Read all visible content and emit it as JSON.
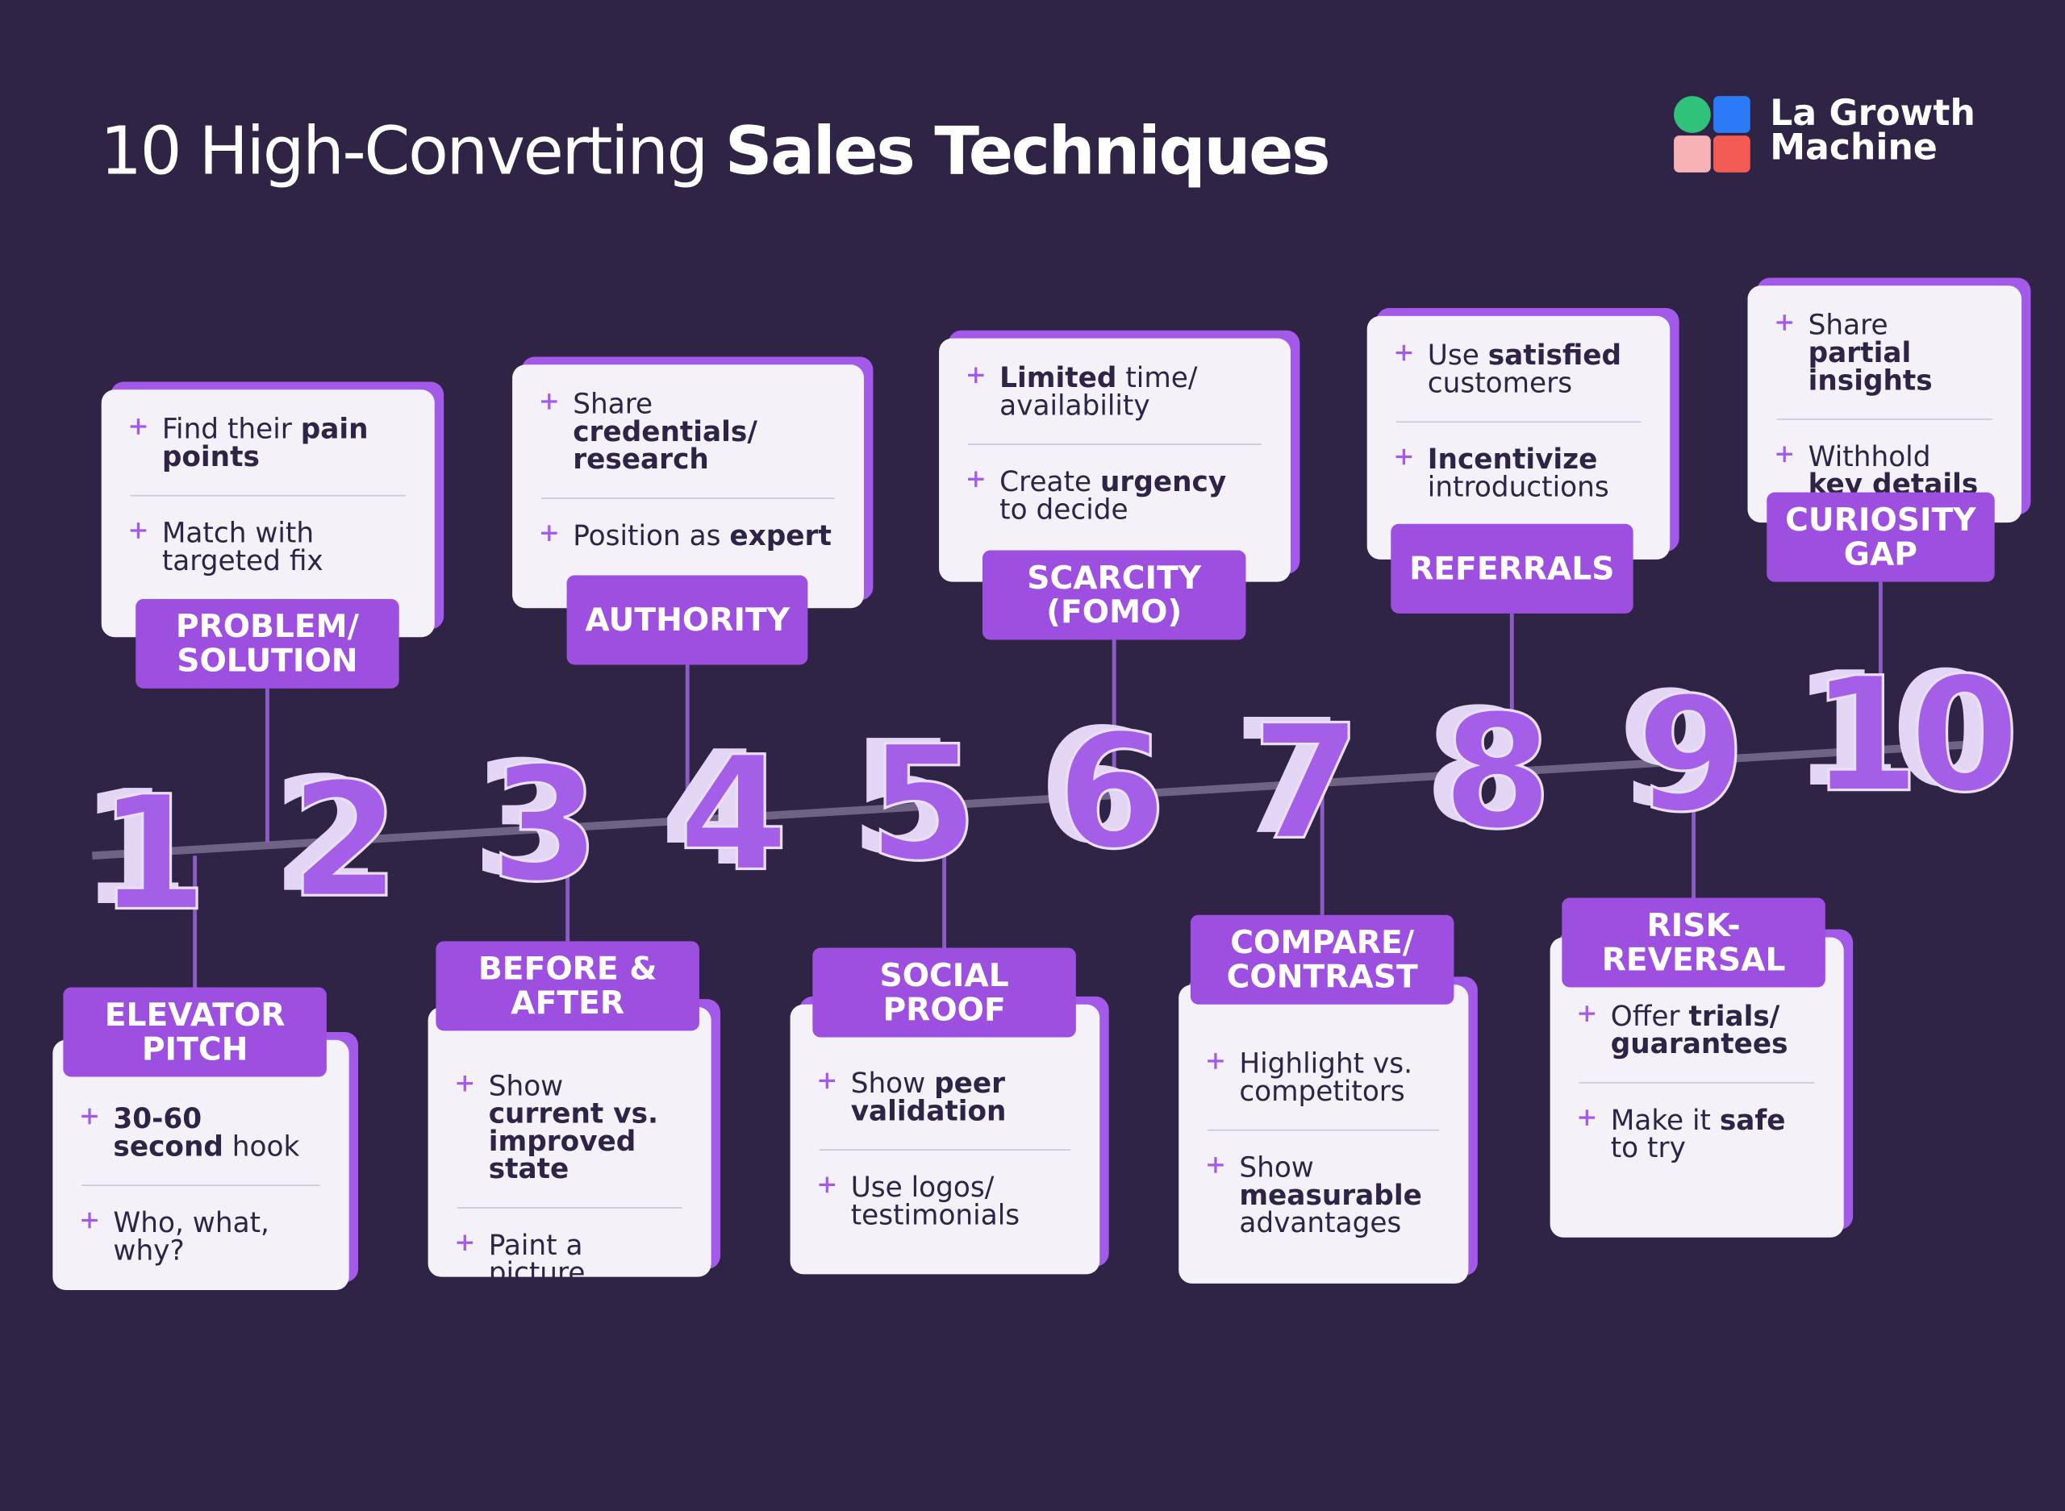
{
  "header": {
    "title_regular": "10 High-Converting",
    "title_bold": "Sales Techniques",
    "logo": "La Growth Machine"
  },
  "items": [
    {
      "number": "1",
      "label": "ELEVATOR PITCH",
      "bullets": [
        [
          {
            "t": "30-60 second",
            "b": true
          },
          {
            "t": " hook"
          }
        ],
        [
          {
            "t": "Who, what, why?"
          }
        ]
      ]
    },
    {
      "number": "2",
      "label": "PROBLEM/ SOLUTION",
      "bullets": [
        [
          {
            "t": "Find their "
          },
          {
            "t": "pain points",
            "b": true
          }
        ],
        [
          {
            "t": "Match with targeted fix"
          }
        ]
      ]
    },
    {
      "number": "3",
      "label": "BEFORE & AFTER",
      "bullets": [
        [
          {
            "t": "Show "
          },
          {
            "t": "current vs. improved state",
            "b": true
          }
        ],
        [
          {
            "t": "Paint a picture"
          }
        ]
      ]
    },
    {
      "number": "4",
      "label": "AUTHORITY",
      "bullets": [
        [
          {
            "t": "Share "
          },
          {
            "t": "credentials/ research",
            "b": true
          }
        ],
        [
          {
            "t": "Position as "
          },
          {
            "t": "expert",
            "b": true
          }
        ]
      ]
    },
    {
      "number": "5",
      "label": "SOCIAL PROOF",
      "bullets": [
        [
          {
            "t": "Show "
          },
          {
            "t": "peer validation",
            "b": true
          }
        ],
        [
          {
            "t": "Use logos/ testimonials"
          }
        ]
      ]
    },
    {
      "number": "6",
      "label": "SCARCITY (FOMO)",
      "bullets": [
        [
          {
            "t": "Limited",
            "b": true
          },
          {
            "t": " time/ availability"
          }
        ],
        [
          {
            "t": "Create "
          },
          {
            "t": "urgency",
            "b": true
          },
          {
            "t": " to decide"
          }
        ]
      ]
    },
    {
      "number": "7",
      "label": "COMPARE/ CONTRAST",
      "bullets": [
        [
          {
            "t": "Highlight vs. competitors"
          }
        ],
        [
          {
            "t": "Show "
          },
          {
            "t": "measurable",
            "b": true
          },
          {
            "t": " advantages"
          }
        ]
      ]
    },
    {
      "number": "8",
      "label": "REFERRALS",
      "bullets": [
        [
          {
            "t": "Use "
          },
          {
            "t": "satisfied",
            "b": true
          },
          {
            "t": " customers"
          }
        ],
        [
          {
            "t": "Incentivize",
            "b": true
          },
          {
            "t": " introductions"
          }
        ]
      ]
    },
    {
      "number": "9",
      "label": "RISK-REVERSAL",
      "bullets": [
        [
          {
            "t": "Offer "
          },
          {
            "t": "trials/ guarantees",
            "b": true
          }
        ],
        [
          {
            "t": "Make it "
          },
          {
            "t": "safe",
            "b": true
          },
          {
            "t": " to try"
          }
        ]
      ]
    },
    {
      "number": "10",
      "label": "CURIOSITY GAP",
      "bullets": [
        [
          {
            "t": "Share "
          },
          {
            "t": "partial insights",
            "b": true
          }
        ],
        [
          {
            "t": "Withhold "
          },
          {
            "t": "key details",
            "b": true
          }
        ]
      ]
    }
  ]
}
